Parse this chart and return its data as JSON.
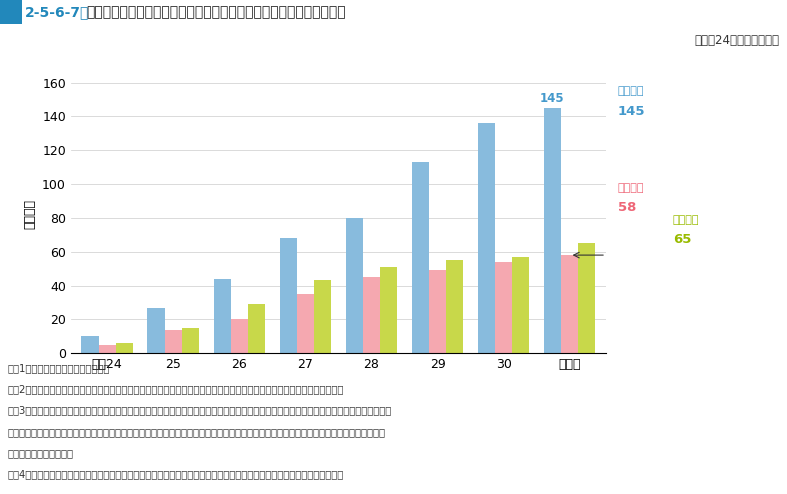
{
  "title_num": "2-5-6-7",
  "title_text": "　地方公共団体における協力雇用主支援等の取組状況の推移（取組別）",
  "subtitle": "（平成24年～令和元年）",
  "ylabel": "（団体）",
  "categories": [
    "平成24",
    "25",
    "26",
    "27",
    "28",
    "29",
    "30",
    "令和元"
  ],
  "series_names": [
    "入札参加",
    "総合評価",
    "直接雇用"
  ],
  "values_nyusatsu": [
    10,
    27,
    44,
    68,
    80,
    113,
    136,
    145
  ],
  "values_sogo": [
    5,
    14,
    20,
    35,
    45,
    49,
    54,
    58
  ],
  "values_chokusetsu": [
    6,
    15,
    29,
    43,
    51,
    55,
    57,
    65
  ],
  "color_nyusatsu": "#88BBDD",
  "color_sogo": "#F5A8B0",
  "color_chokusetsu": "#C8D84A",
  "color_nyusatsu_label": "#4499CC",
  "color_sogo_label": "#EE6677",
  "color_chokusetsu_label": "#99BB00",
  "ylim": [
    0,
    165
  ],
  "yticks": [
    0,
    20,
    40,
    60,
    80,
    100,
    120,
    140,
    160
  ],
  "ann_nyusatsu": "145",
  "ann_sogo": "58",
  "ann_chokusetsu": "65",
  "label_nyusatsu": "入札参加",
  "label_sogo": "総合評価",
  "label_chokusetsu": "直接雇用",
  "note_color": "#333333",
  "header_bg": "#2288BB",
  "header_text_color": "#FFFFFF",
  "notes": [
    "注　1　法務省保護局の資料による。",
    "　　2　本図は，令和元年末現在において，各取組の実施の事実及び実施した年が確認された地方公共団体の数で作成した。",
    "　　3　「入札参加」は，入札参加資格審査において，「総合評価」は，総合評価落札方式において，それぞれ協力雇用主として登録している",
    "　　　場合，あるいは，協力雇用主として保護観察対象者等を雇用した実績がある場合に，社会貢献活動や地域貢献活動として加点し，優遇",
    "　　　するものをいう。",
    "　　4　「直接雇用」は，地方公共団体が保護観察対象者の就労支援のため非常勤職員として一定期間雇用するものをいう。"
  ]
}
